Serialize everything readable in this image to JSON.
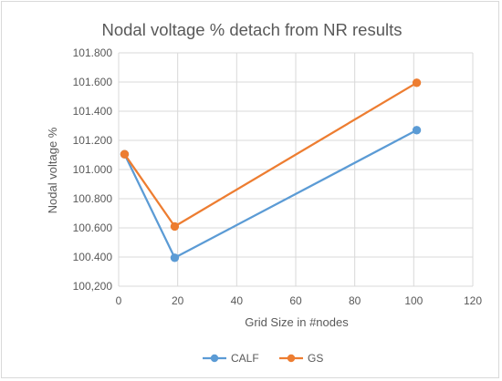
{
  "chart_data": {
    "type": "scatter",
    "title": "Nodal voltage % detach from NR results",
    "xlabel": "Grid Size in #nodes",
    "ylabel": "Nodal voltage %",
    "xlim": [
      0,
      120
    ],
    "ylim": [
      100.2,
      101.8
    ],
    "x_ticks": [
      "0",
      "20",
      "40",
      "60",
      "80",
      "100",
      "120"
    ],
    "y_ticks": [
      "100,200",
      "100.400",
      "100.600",
      "100.800",
      "101.000",
      "101.200",
      "101.400",
      "101.600",
      "101.800"
    ],
    "grid": true,
    "legend_position": "bottom",
    "series": [
      {
        "name": "CALF",
        "color": "#5b9bd5",
        "points": [
          {
            "x": 2,
            "y": 101.105
          },
          {
            "x": 19,
            "y": 100.395
          },
          {
            "x": 101,
            "y": 101.27
          }
        ]
      },
      {
        "name": "GS",
        "color": "#ed7d31",
        "points": [
          {
            "x": 2,
            "y": 101.105
          },
          {
            "x": 19,
            "y": 100.61
          },
          {
            "x": 101,
            "y": 101.595
          }
        ]
      }
    ]
  }
}
